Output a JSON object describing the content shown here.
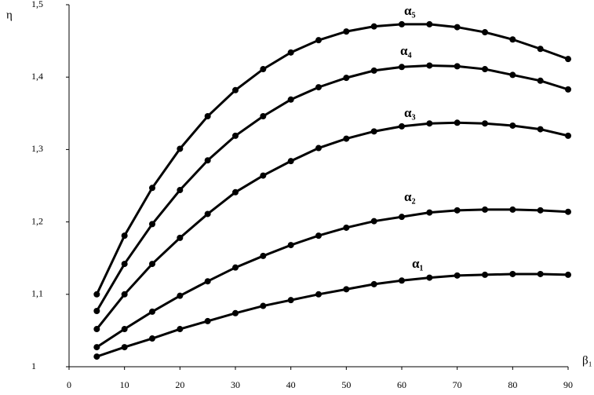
{
  "chart_data": {
    "type": "line",
    "y_label": "η",
    "x_label": "β₁",
    "x": [
      5,
      10,
      15,
      20,
      25,
      30,
      35,
      40,
      45,
      50,
      55,
      60,
      65,
      70,
      75,
      80,
      85,
      90
    ],
    "series": [
      {
        "name": "α₁",
        "color": "#000000",
        "values": [
          1.014,
          1.027,
          1.039,
          1.052,
          1.063,
          1.074,
          1.084,
          1.092,
          1.1,
          1.107,
          1.114,
          1.119,
          1.123,
          1.126,
          1.127,
          1.128,
          1.128,
          1.127
        ]
      },
      {
        "name": "α₂",
        "color": "#000000",
        "values": [
          1.027,
          1.052,
          1.076,
          1.098,
          1.118,
          1.137,
          1.153,
          1.168,
          1.181,
          1.192,
          1.201,
          1.207,
          1.213,
          1.216,
          1.217,
          1.217,
          1.216,
          1.214
        ]
      },
      {
        "name": "α₃",
        "color": "#000000",
        "values": [
          1.052,
          1.1,
          1.142,
          1.178,
          1.211,
          1.241,
          1.264,
          1.284,
          1.302,
          1.315,
          1.325,
          1.332,
          1.336,
          1.337,
          1.336,
          1.333,
          1.328,
          1.319
        ]
      },
      {
        "name": "α₄",
        "color": "#000000",
        "values": [
          1.077,
          1.142,
          1.197,
          1.244,
          1.285,
          1.319,
          1.346,
          1.369,
          1.386,
          1.399,
          1.409,
          1.414,
          1.416,
          1.415,
          1.411,
          1.403,
          1.395,
          1.383
        ]
      },
      {
        "name": "α₅",
        "color": "#000000",
        "values": [
          1.1,
          1.181,
          1.247,
          1.301,
          1.346,
          1.382,
          1.411,
          1.434,
          1.451,
          1.463,
          1.47,
          1.473,
          1.473,
          1.469,
          1.462,
          1.452,
          1.439,
          1.425
        ]
      }
    ],
    "xlim": [
      0,
      90
    ],
    "xticks": [
      0,
      10,
      20,
      30,
      40,
      50,
      60,
      70,
      80,
      90
    ],
    "ylim": [
      1,
      1.5
    ],
    "yticks": [
      1,
      {
        "value": 1.1,
        "label": "1,1"
      },
      {
        "value": 1.2,
        "label": "1,2"
      },
      {
        "value": 1.3,
        "label": "1,3"
      },
      {
        "value": 1.4,
        "label": "1,4"
      },
      {
        "value": 1.5,
        "label": "1,5"
      }
    ],
    "grid": false
  }
}
